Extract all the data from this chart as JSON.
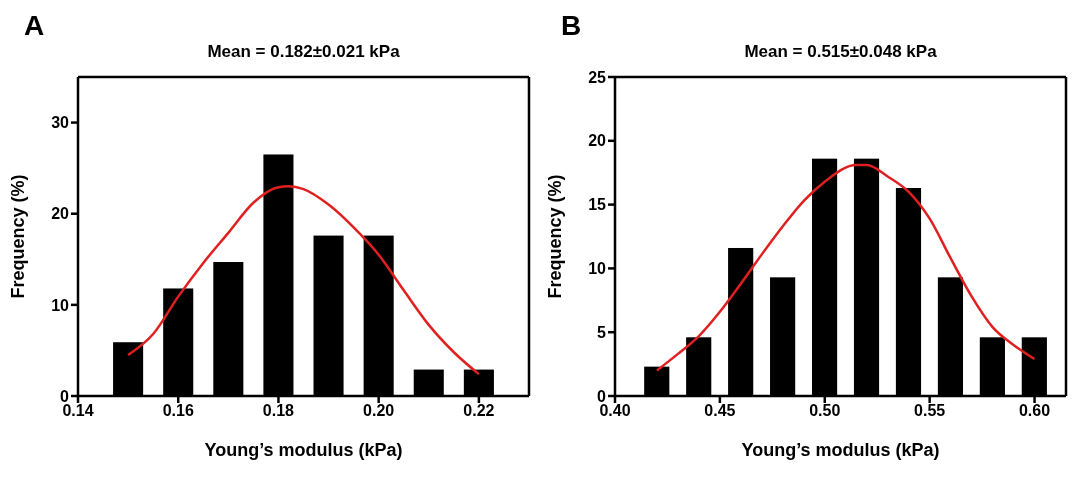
{
  "chart_data": [
    {
      "type": "bar",
      "title": "Mean = 0.182±0.021 kPa",
      "xlabel": "Young’s modulus (kPa)",
      "ylabel": "Frequency (%)",
      "annotations": [
        "A"
      ],
      "xlim": [
        0.14,
        0.23
      ],
      "ylim": [
        0,
        35
      ],
      "xticks": [
        0.14,
        0.16,
        0.18,
        {
          "value": 0.2,
          "label": "0.20"
        },
        0.22
      ],
      "yticks": [
        0,
        10,
        20,
        30
      ],
      "series": [
        {
          "color": "#000000",
          "x": [
            0.15,
            0.16,
            0.17,
            0.18,
            0.19,
            0.2,
            0.21,
            0.22
          ],
          "values": [
            5.9,
            11.8,
            14.7,
            26.5,
            17.6,
            17.6,
            2.9,
            2.9
          ]
        },
        {
          "type": "line",
          "color": "#e02020",
          "x": [
            0.15,
            0.155,
            0.16,
            0.165,
            0.17,
            0.175,
            0.18,
            0.182,
            0.185,
            0.19,
            0.195,
            0.2,
            0.205,
            0.21,
            0.215,
            0.22
          ],
          "values": [
            4.5,
            6.8,
            10.9,
            14.6,
            17.9,
            21.2,
            22.9,
            23.0,
            22.7,
            21.0,
            18.5,
            15.5,
            11.6,
            7.8,
            4.8,
            2.4
          ]
        }
      ]
    },
    {
      "type": "bar",
      "title": "Mean = 0.515±0.048 kPa",
      "xlabel": "Young’s modulus (kPa)",
      "ylabel": "Frequency (%)",
      "annotations": [
        "B"
      ],
      "xlim": [
        0.4,
        0.615
      ],
      "ylim": [
        0,
        25
      ],
      "xticks": [
        {
          "value": 0.4,
          "label": "0.40"
        },
        0.45,
        {
          "value": 0.5,
          "label": "0.50"
        },
        0.55,
        {
          "value": 0.6,
          "label": "0.60"
        }
      ],
      "yticks": [
        0,
        5,
        10,
        15,
        20,
        25
      ],
      "series": [
        {
          "color": "#000000",
          "x": [
            0.42,
            0.44,
            0.46,
            0.48,
            0.5,
            0.52,
            0.54,
            0.56,
            0.58,
            0.6
          ],
          "values": [
            2.3,
            4.6,
            11.6,
            9.3,
            18.6,
            18.6,
            16.3,
            9.3,
            4.6,
            4.6
          ]
        },
        {
          "type": "line",
          "color": "#e02020",
          "x": [
            0.42,
            0.43,
            0.44,
            0.45,
            0.46,
            0.47,
            0.48,
            0.49,
            0.5,
            0.515,
            0.52,
            0.53,
            0.54,
            0.55,
            0.56,
            0.57,
            0.58,
            0.59,
            0.6
          ],
          "values": [
            2.0,
            3.3,
            4.7,
            6.6,
            8.8,
            11.1,
            13.3,
            15.3,
            16.8,
            18.1,
            18.1,
            17.2,
            16.0,
            13.9,
            10.8,
            7.8,
            5.4,
            4.0,
            2.9
          ]
        }
      ]
    }
  ]
}
